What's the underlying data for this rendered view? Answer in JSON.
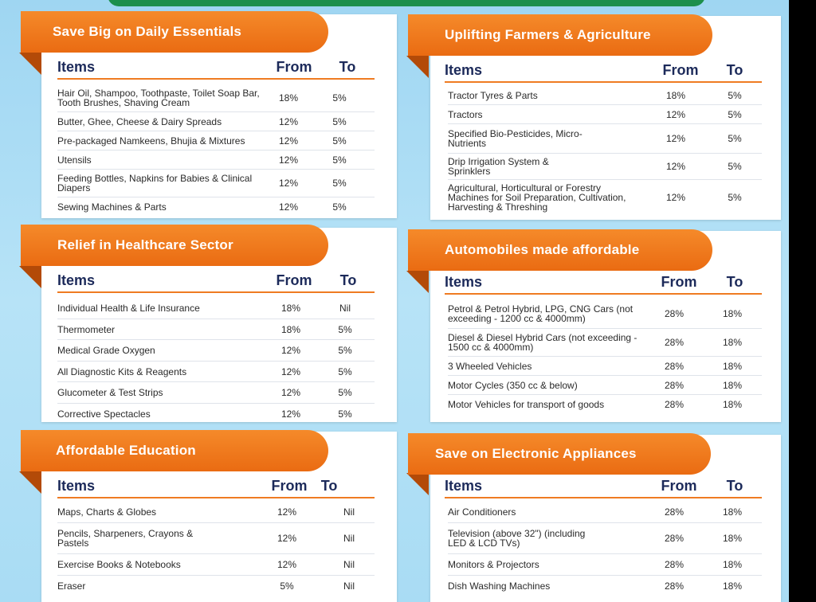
{
  "sections": [
    {
      "title": "Save Big on Daily Essentials",
      "headers": {
        "items": "Items",
        "from": "From",
        "to": "To"
      },
      "rows": [
        {
          "item": "Hair Oil, Shampoo, Toothpaste, Toilet Soap Bar, Tooth Brushes, Shaving Cream",
          "from": "18%",
          "to": "5%"
        },
        {
          "item": "Butter, Ghee, Cheese & Dairy Spreads",
          "from": "12%",
          "to": "5%"
        },
        {
          "item": "Pre-packaged Namkeens, Bhujia & Mixtures",
          "from": "12%",
          "to": "5%"
        },
        {
          "item": "Utensils",
          "from": "12%",
          "to": "5%"
        },
        {
          "item": "Feeding Bottles, Napkins for Babies & Clinical Diapers",
          "from": "12%",
          "to": "5%"
        },
        {
          "item": "Sewing Machines & Parts",
          "from": "12%",
          "to": "5%"
        }
      ]
    },
    {
      "title": "Uplifting Farmers & Agriculture",
      "headers": {
        "items": "Items",
        "from": "From",
        "to": "To"
      },
      "rows": [
        {
          "item": "Tractor Tyres & Parts",
          "from": "18%",
          "to": "5%"
        },
        {
          "item": "Tractors",
          "from": "12%",
          "to": "5%"
        },
        {
          "item": "Specified Bio-Pesticides, Micro-Nutrients",
          "from": "12%",
          "to": "5%"
        },
        {
          "item": "Drip Irrigation System & Sprinklers",
          "from": "12%",
          "to": "5%"
        },
        {
          "item": "Agricultural, Horticultural or Forestry Machines for Soil Preparation, Cultivation, Harvesting & Threshing",
          "from": "12%",
          "to": "5%"
        }
      ]
    },
    {
      "title": "Relief in Healthcare Sector",
      "headers": {
        "items": "Items",
        "from": "From",
        "to": "To"
      },
      "rows": [
        {
          "item": "Individual Health & Life Insurance",
          "from": "18%",
          "to": "Nil"
        },
        {
          "item": "Thermometer",
          "from": "18%",
          "to": "5%"
        },
        {
          "item": "Medical Grade Oxygen",
          "from": "12%",
          "to": "5%"
        },
        {
          "item": "All Diagnostic Kits & Reagents",
          "from": "12%",
          "to": "5%"
        },
        {
          "item": "Glucometer & Test Strips",
          "from": "12%",
          "to": "5%"
        },
        {
          "item": "Corrective Spectacles",
          "from": "12%",
          "to": "5%"
        }
      ]
    },
    {
      "title": "Automobiles made affordable",
      "headers": {
        "items": "Items",
        "from": "From",
        "to": "To"
      },
      "rows": [
        {
          "item": "Petrol & Petrol Hybrid, LPG, CNG Cars (not exceeding - 1200 cc & 4000mm)",
          "from": "28%",
          "to": "18%"
        },
        {
          "item": "Diesel & Diesel Hybrid Cars (not exceeding - 1500 cc & 4000mm)",
          "from": "28%",
          "to": "18%"
        },
        {
          "item": "3 Wheeled Vehicles",
          "from": "28%",
          "to": "18%"
        },
        {
          "item": "Motor Cycles (350 cc & below)",
          "from": "28%",
          "to": "18%"
        },
        {
          "item": "Motor Vehicles for transport of goods",
          "from": "28%",
          "to": "18%"
        }
      ]
    },
    {
      "title": "Affordable Education",
      "headers": {
        "items": "Items",
        "from": "From",
        "to": "To"
      },
      "rows": [
        {
          "item": "Maps, Charts & Globes",
          "from": "12%",
          "to": "Nil"
        },
        {
          "item": "Pencils, Sharpeners, Crayons & Pastels",
          "from": "12%",
          "to": "Nil"
        },
        {
          "item": "Exercise Books & Notebooks",
          "from": "12%",
          "to": "Nil"
        },
        {
          "item": "Eraser",
          "from": "5%",
          "to": "Nil"
        }
      ]
    },
    {
      "title": "Save on Electronic Appliances",
      "headers": {
        "items": "Items",
        "from": "From",
        "to": "To"
      },
      "rows": [
        {
          "item": "Air Conditioners",
          "from": "28%",
          "to": "18%"
        },
        {
          "item": "Television (above 32\") (including LED & LCD TVs)",
          "from": "28%",
          "to": "18%"
        },
        {
          "item": "Monitors & Projectors",
          "from": "28%",
          "to": "18%"
        },
        {
          "item": "Dish Washing Machines",
          "from": "28%",
          "to": "18%"
        }
      ]
    }
  ]
}
